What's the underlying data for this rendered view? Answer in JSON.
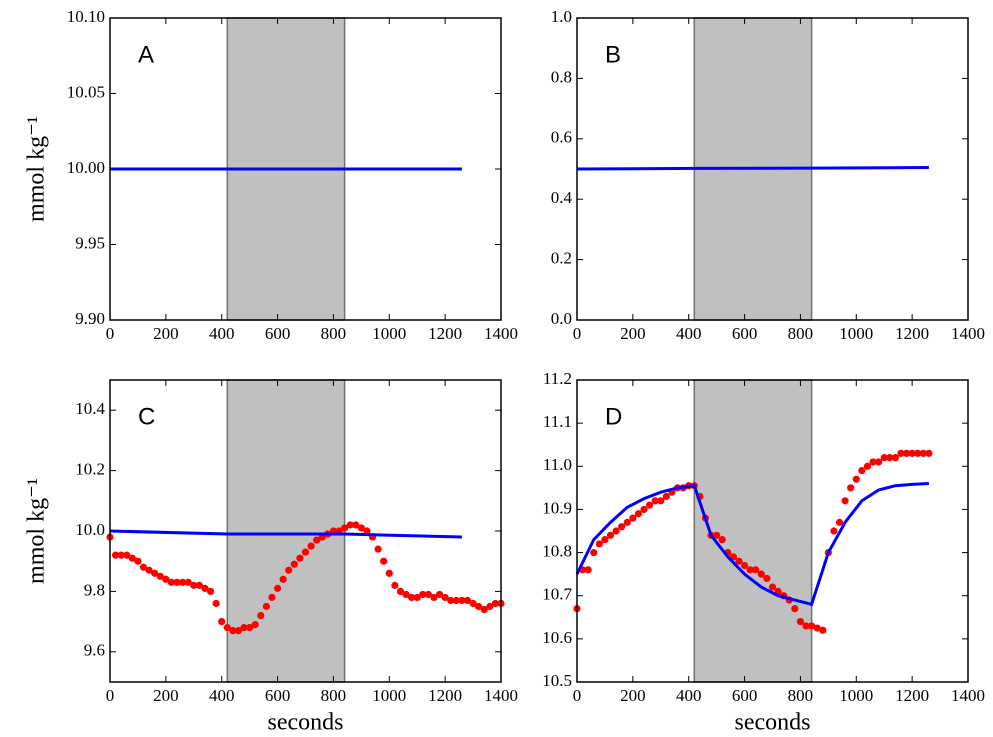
{
  "chart_data": [
    {
      "type": "line",
      "annotation": "A",
      "ylabel": "mmol kg⁻¹",
      "shade": [
        420,
        840
      ],
      "shade_color": "#c0c0c0",
      "xlim": [
        0,
        1400
      ],
      "xticks": [
        0,
        200,
        400,
        600,
        800,
        1000,
        1200,
        1400
      ],
      "ylim": [
        9.9,
        10.1
      ],
      "yticks": [
        {
          "value": 9.9,
          "label": "9.90"
        },
        {
          "value": 9.95,
          "label": "9.95"
        },
        {
          "value": 10.0,
          "label": "10.00"
        },
        {
          "value": 10.05,
          "label": "10.05"
        },
        {
          "value": 10.1,
          "label": "10.10"
        }
      ],
      "series": [
        {
          "style": "line",
          "color": "#0000ff",
          "x": [
            0,
            420,
            840,
            1260
          ],
          "values": [
            10.0,
            10.0,
            10.0,
            10.0
          ]
        }
      ]
    },
    {
      "type": "line",
      "annotation": "B",
      "shade": [
        420,
        840
      ],
      "shade_color": "#c0c0c0",
      "xlim": [
        0,
        1400
      ],
      "xticks": [
        0,
        200,
        400,
        600,
        800,
        1000,
        1200,
        1400
      ],
      "ylim": [
        0,
        1
      ],
      "yticks": [
        {
          "value": 0,
          "label": "0.0"
        },
        0.2,
        0.4,
        0.6,
        0.8,
        {
          "value": 1,
          "label": "1.0"
        }
      ],
      "series": [
        {
          "style": "line",
          "color": "#0000ff",
          "x": [
            0,
            420,
            840,
            1260
          ],
          "values": [
            0.5,
            0.502,
            0.503,
            0.505
          ]
        }
      ]
    },
    {
      "type": "line",
      "annotation": "C",
      "ylabel": "mmol kg⁻¹",
      "xlabel": "seconds",
      "shade": [
        420,
        840
      ],
      "shade_color": "#c0c0c0",
      "xlim": [
        0,
        1400
      ],
      "xticks": [
        0,
        200,
        400,
        600,
        800,
        1000,
        1200,
        1400
      ],
      "ylim": [
        9.5,
        10.5
      ],
      "yticks": [
        9.6,
        9.8,
        {
          "value": 10.0,
          "label": "10.0"
        },
        10.2,
        10.4
      ],
      "series": [
        {
          "style": "markers",
          "color": "#ff0000",
          "x": [
            0,
            20,
            40,
            60,
            80,
            100,
            120,
            140,
            160,
            180,
            200,
            220,
            240,
            260,
            280,
            300,
            320,
            340,
            360,
            380,
            400,
            420,
            440,
            460,
            480,
            500,
            520,
            540,
            560,
            580,
            600,
            620,
            640,
            660,
            680,
            700,
            720,
            740,
            760,
            780,
            800,
            820,
            840,
            860,
            880,
            900,
            920,
            940,
            960,
            980,
            1000,
            1020,
            1040,
            1060,
            1080,
            1100,
            1120,
            1140,
            1160,
            1180,
            1200,
            1220,
            1240,
            1260,
            1280,
            1300,
            1320,
            1340,
            1360,
            1380,
            1400
          ],
          "values": [
            9.98,
            9.92,
            9.92,
            9.92,
            9.91,
            9.9,
            9.88,
            9.87,
            9.86,
            9.85,
            9.84,
            9.83,
            9.83,
            9.83,
            9.83,
            9.82,
            9.82,
            9.81,
            9.8,
            9.76,
            9.7,
            9.68,
            9.67,
            9.67,
            9.68,
            9.68,
            9.69,
            9.72,
            9.75,
            9.78,
            9.81,
            9.84,
            9.87,
            9.89,
            9.91,
            9.93,
            9.95,
            9.97,
            9.98,
            9.99,
            10.0,
            10.0,
            10.01,
            10.02,
            10.02,
            10.01,
            10.0,
            9.98,
            9.94,
            9.9,
            9.86,
            9.82,
            9.8,
            9.79,
            9.78,
            9.78,
            9.79,
            9.79,
            9.78,
            9.79,
            9.78,
            9.77,
            9.77,
            9.77,
            9.77,
            9.76,
            9.75,
            9.74,
            9.75,
            9.76,
            9.76
          ]
        },
        {
          "style": "line",
          "color": "#0000ff",
          "x": [
            0,
            420,
            840,
            1260
          ],
          "values": [
            10.0,
            9.99,
            9.99,
            9.98
          ]
        }
      ]
    },
    {
      "type": "line",
      "annotation": "D",
      "xlabel": "seconds",
      "shade": [
        420,
        840
      ],
      "shade_color": "#c0c0c0",
      "xlim": [
        0,
        1400
      ],
      "xticks": [
        0,
        200,
        400,
        600,
        800,
        1000,
        1200,
        1400
      ],
      "ylim": [
        10.5,
        11.2
      ],
      "yticks": [
        10.5,
        10.6,
        10.7,
        10.8,
        10.9,
        {
          "value": 11.0,
          "label": "11.0"
        },
        11.1,
        11.2
      ],
      "series": [
        {
          "style": "markers",
          "color": "#ff0000",
          "x": [
            0,
            20,
            40,
            60,
            80,
            100,
            120,
            140,
            160,
            180,
            200,
            220,
            240,
            260,
            280,
            300,
            320,
            340,
            360,
            380,
            400,
            420,
            440,
            460,
            480,
            500,
            520,
            540,
            560,
            580,
            600,
            620,
            640,
            660,
            680,
            700,
            720,
            740,
            760,
            780,
            800,
            820,
            840,
            860,
            880,
            900,
            920,
            940,
            960,
            980,
            1000,
            1020,
            1040,
            1060,
            1080,
            1100,
            1120,
            1140,
            1160,
            1180,
            1200,
            1220,
            1240,
            1260
          ],
          "values": [
            10.67,
            10.76,
            10.76,
            10.8,
            10.82,
            10.83,
            10.84,
            10.85,
            10.86,
            10.87,
            10.88,
            10.89,
            10.9,
            10.91,
            10.92,
            10.92,
            10.93,
            10.94,
            10.95,
            10.95,
            10.955,
            10.955,
            10.93,
            10.88,
            10.84,
            10.84,
            10.83,
            10.8,
            10.79,
            10.78,
            10.77,
            10.76,
            10.76,
            10.75,
            10.74,
            10.72,
            10.71,
            10.7,
            10.69,
            10.67,
            10.64,
            10.63,
            10.63,
            10.625,
            10.62,
            10.8,
            10.85,
            10.87,
            10.92,
            10.95,
            10.97,
            10.99,
            11.0,
            11.01,
            11.01,
            11.02,
            11.02,
            11.02,
            11.03,
            11.03,
            11.03,
            11.03,
            11.03,
            11.03
          ]
        },
        {
          "style": "line",
          "color": "#0000ff",
          "x": [
            0,
            60,
            120,
            180,
            240,
            300,
            360,
            420,
            480,
            540,
            600,
            660,
            720,
            780,
            840,
            900,
            960,
            1020,
            1080,
            1140,
            1200,
            1260
          ],
          "values": [
            10.75,
            10.83,
            10.87,
            10.905,
            10.925,
            10.94,
            10.95,
            10.955,
            10.84,
            10.79,
            10.75,
            10.72,
            10.7,
            10.69,
            10.68,
            10.8,
            10.87,
            10.92,
            10.945,
            10.955,
            10.958,
            10.96
          ]
        }
      ]
    }
  ]
}
